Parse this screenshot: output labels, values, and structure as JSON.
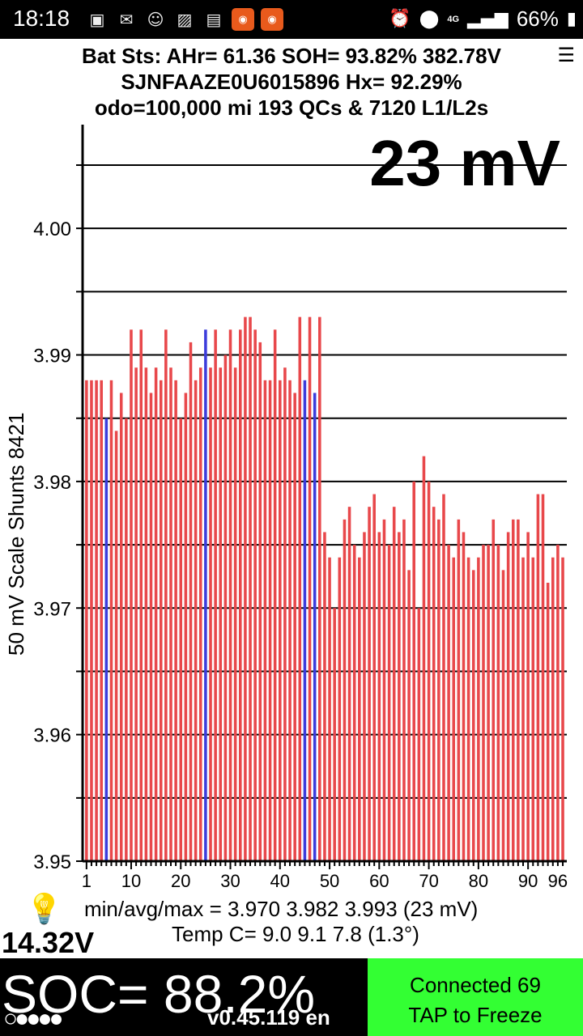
{
  "status_bar": {
    "time": "18:18",
    "battery_percent": "66%",
    "network_label": "4G",
    "notification_icons": [
      "photo-icon",
      "mail-icon",
      "waze-icon",
      "gallery-icon",
      "news-icon",
      "app-icon",
      "app-icon"
    ],
    "system_icons": [
      "alarm-icon",
      "location-icon",
      "signal-icon",
      "battery-icon"
    ]
  },
  "header": {
    "line1": "Bat Sts: AHr= 61.36 SOH= 93.82% 382.78V",
    "line2": "SJNFAAZE0U6015896   Hx= 92.29%",
    "line3": "odo=100,000 mi 193 QCs & 7120 L1/L2s"
  },
  "spread_label": "23 mV",
  "chart_data": {
    "type": "bar",
    "ylabel": "50 mV Scale   Shunts 8421",
    "ylim": [
      3.95,
      4.005
    ],
    "ytick_labels": [
      "4.00",
      "3.99",
      "3.98",
      "3.97",
      "3.96",
      "3.95"
    ],
    "ytick_values": [
      4.0,
      3.99,
      3.98,
      3.97,
      3.96,
      3.95
    ],
    "gridlines": [
      4.005,
      4.0,
      3.995,
      3.99,
      3.985,
      3.98,
      3.975,
      3.97,
      3.965,
      3.96,
      3.955,
      3.95
    ],
    "xtick_labels": [
      "1",
      "10",
      "20",
      "30",
      "40",
      "50",
      "60",
      "70",
      "80",
      "90",
      "96"
    ],
    "xtick_values": [
      1,
      10,
      20,
      30,
      40,
      50,
      60,
      70,
      80,
      90,
      96
    ],
    "colors": {
      "normal": "#e8484b",
      "shunt": "#3c3cdb"
    },
    "shunt_cells": [
      5,
      25,
      45,
      47
    ],
    "values": [
      3.988,
      3.988,
      3.988,
      3.988,
      3.985,
      3.988,
      3.984,
      3.987,
      3.985,
      3.992,
      3.989,
      3.992,
      3.989,
      3.987,
      3.989,
      3.988,
      3.992,
      3.989,
      3.988,
      3.985,
      3.987,
      3.991,
      3.988,
      3.989,
      3.992,
      3.989,
      3.992,
      3.989,
      3.99,
      3.992,
      3.989,
      3.992,
      3.993,
      3.993,
      3.992,
      3.991,
      3.988,
      3.988,
      3.992,
      3.988,
      3.989,
      3.988,
      3.987,
      3.993,
      3.988,
      3.993,
      3.987,
      3.993,
      3.976,
      3.974,
      3.97,
      3.974,
      3.977,
      3.978,
      3.975,
      3.974,
      3.976,
      3.978,
      3.979,
      3.976,
      3.977,
      3.975,
      3.978,
      3.976,
      3.977,
      3.973,
      3.98,
      3.97,
      3.982,
      3.98,
      3.978,
      3.977,
      3.979,
      3.975,
      3.974,
      3.977,
      3.976,
      3.974,
      3.973,
      3.974,
      3.975,
      3.975,
      3.977,
      3.975,
      3.973,
      3.976,
      3.977,
      3.977,
      3.974,
      3.976,
      3.974,
      3.979,
      3.979,
      3.972,
      3.974,
      3.975,
      3.974
    ]
  },
  "stats": {
    "min_avg_max": "min/avg/max = 3.970  3.982  3.993  (23 mV)",
    "temp": "Temp C= 9.0   9.1   7.8   (1.3°)"
  },
  "voltage": "14.32V",
  "soc": "SOC= 88.2%",
  "dots": "○●●●●",
  "version": "v0.45.119 en",
  "connection": {
    "status": "Connected 69",
    "action": "TAP to Freeze"
  }
}
